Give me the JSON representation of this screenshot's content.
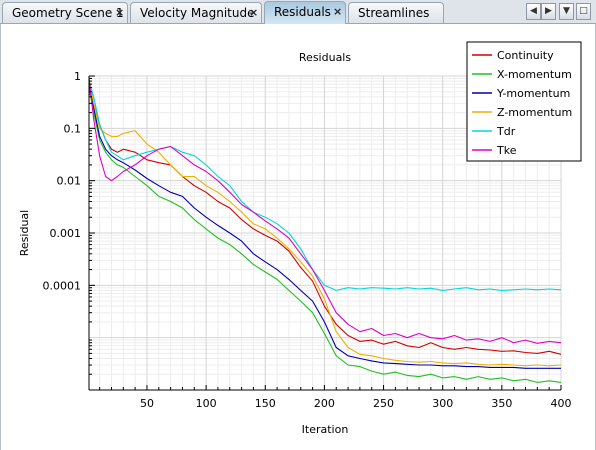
{
  "tabs": [
    {
      "label": "Geometry Scene 1",
      "active": false
    },
    {
      "label": "Velocity Magnitude",
      "active": false
    },
    {
      "label": "Residuals",
      "active": true
    },
    {
      "label": "Streamlines",
      "active": false
    }
  ],
  "tab_close_glyph": "×",
  "nav_buttons": [
    {
      "icon": "arrow-left-icon"
    },
    {
      "icon": "arrow-right-icon"
    },
    {
      "icon": "dropdown-icon"
    },
    {
      "icon": "maximize-icon"
    }
  ],
  "chart_data": {
    "type": "line",
    "title": "Residuals",
    "xlabel": "Iteration",
    "ylabel": "Residual",
    "xscale": "linear",
    "yscale": "log",
    "xlim": [
      1,
      400
    ],
    "ylim": [
      1e-06,
      1
    ],
    "xticks": [
      50,
      100,
      150,
      200,
      250,
      300,
      350,
      400
    ],
    "yticks": [
      {
        "value": 1,
        "label": "1"
      },
      {
        "value": 0.1,
        "label": "0.1"
      },
      {
        "value": 0.01,
        "label": "0.01"
      },
      {
        "value": 0.001,
        "label": "0.001"
      },
      {
        "value": 0.0001,
        "label": "0.0001"
      }
    ],
    "grid": true,
    "legend_position": "top-right",
    "series": [
      {
        "name": "Continuity",
        "color": "#d40000",
        "x": [
          1,
          5,
          10,
          15,
          20,
          25,
          30,
          40,
          50,
          60,
          70,
          80,
          90,
          100,
          110,
          120,
          130,
          140,
          150,
          160,
          170,
          180,
          190,
          200,
          210,
          220,
          230,
          240,
          250,
          260,
          270,
          280,
          290,
          300,
          310,
          320,
          330,
          340,
          350,
          360,
          370,
          380,
          390,
          400
        ],
        "y": [
          0.5,
          0.3,
          0.12,
          0.06,
          0.04,
          0.035,
          0.04,
          0.035,
          0.025,
          0.022,
          0.02,
          0.012,
          0.008,
          0.006,
          0.004,
          0.003,
          0.0018,
          0.0012,
          0.0009,
          0.0007,
          0.00045,
          0.00022,
          0.00012,
          4e-05,
          1.8e-05,
          1.1e-05,
          8.5e-06,
          9e-06,
          7.5e-06,
          8.5e-06,
          7e-06,
          6.5e-06,
          8e-06,
          6.5e-06,
          6e-06,
          6.5e-06,
          6e-06,
          5.8e-06,
          5.5e-06,
          5.6e-06,
          5.2e-06,
          5e-06,
          5.5e-06,
          4.8e-06
        ]
      },
      {
        "name": "X-momentum",
        "color": "#20c020",
        "x": [
          1,
          5,
          10,
          15,
          20,
          25,
          30,
          40,
          50,
          60,
          70,
          80,
          90,
          100,
          110,
          120,
          130,
          140,
          150,
          160,
          170,
          180,
          190,
          200,
          210,
          220,
          230,
          240,
          250,
          260,
          270,
          280,
          290,
          300,
          310,
          320,
          330,
          340,
          350,
          360,
          370,
          380,
          390,
          400
        ],
        "y": [
          0.6,
          0.2,
          0.06,
          0.035,
          0.025,
          0.02,
          0.018,
          0.012,
          0.008,
          0.005,
          0.004,
          0.003,
          0.0018,
          0.0012,
          0.0008,
          0.0006,
          0.0004,
          0.00025,
          0.00018,
          0.00013,
          8e-05,
          5e-05,
          3e-05,
          1.2e-05,
          4.5e-06,
          3e-06,
          2.8e-06,
          2.3e-06,
          2e-06,
          2.2e-06,
          1.9e-06,
          1.8e-06,
          2e-06,
          1.7e-06,
          1.8e-06,
          1.6e-06,
          1.8e-06,
          1.6e-06,
          1.7e-06,
          1.5e-06,
          1.6e-06,
          1.4e-06,
          1.5e-06,
          1.4e-06
        ]
      },
      {
        "name": "Y-momentum",
        "color": "#0000b0",
        "x": [
          1,
          5,
          10,
          15,
          20,
          25,
          30,
          40,
          50,
          60,
          70,
          80,
          90,
          100,
          110,
          120,
          130,
          140,
          150,
          160,
          170,
          180,
          190,
          200,
          210,
          220,
          230,
          240,
          250,
          260,
          270,
          280,
          290,
          300,
          310,
          320,
          330,
          340,
          350,
          360,
          370,
          380,
          390,
          400
        ],
        "y": [
          0.7,
          0.25,
          0.07,
          0.04,
          0.03,
          0.025,
          0.022,
          0.016,
          0.011,
          0.008,
          0.006,
          0.005,
          0.003,
          0.002,
          0.0014,
          0.001,
          0.0007,
          0.0004,
          0.00028,
          0.0002,
          0.00013,
          8e-05,
          5e-05,
          2e-05,
          6.5e-06,
          4.5e-06,
          4e-06,
          3.6e-06,
          3.3e-06,
          3.2e-06,
          3.1e-06,
          3e-06,
          3e-06,
          2.9e-06,
          2.9e-06,
          2.8e-06,
          2.8e-06,
          2.7e-06,
          2.7e-06,
          2.7e-06,
          2.6e-06,
          2.6e-06,
          2.6e-06,
          2.6e-06
        ]
      },
      {
        "name": "Z-momentum",
        "color": "#f0b000",
        "x": [
          1,
          5,
          10,
          15,
          20,
          25,
          30,
          40,
          50,
          60,
          70,
          80,
          90,
          100,
          110,
          120,
          130,
          140,
          150,
          160,
          170,
          180,
          190,
          200,
          210,
          220,
          230,
          240,
          250,
          260,
          270,
          280,
          290,
          300,
          310,
          320,
          330,
          340,
          350,
          360,
          370,
          380,
          390,
          400
        ],
        "y": [
          0.9,
          0.3,
          0.1,
          0.08,
          0.07,
          0.07,
          0.08,
          0.09,
          0.05,
          0.035,
          0.02,
          0.012,
          0.012,
          0.008,
          0.006,
          0.004,
          0.0025,
          0.0015,
          0.0012,
          0.0008,
          0.0005,
          0.00028,
          0.00015,
          5.5e-05,
          1.3e-05,
          6.5e-06,
          4.8e-06,
          4.5e-06,
          4e-06,
          3.7e-06,
          3.5e-06,
          3.4e-06,
          3.5e-06,
          3.3e-06,
          3.2e-06,
          3.3e-06,
          3.1e-06,
          3e-06,
          3.1e-06,
          3e-06,
          2.9e-06,
          3e-06,
          2.9e-06,
          3e-06
        ]
      },
      {
        "name": "Tdr",
        "color": "#00d8d8",
        "x": [
          1,
          5,
          10,
          15,
          20,
          25,
          30,
          40,
          50,
          60,
          70,
          80,
          90,
          100,
          110,
          120,
          130,
          140,
          150,
          160,
          170,
          180,
          190,
          200,
          210,
          220,
          230,
          240,
          250,
          260,
          270,
          280,
          290,
          300,
          310,
          320,
          330,
          340,
          350,
          360,
          370,
          380,
          390,
          400
        ],
        "y": [
          0.8,
          0.4,
          0.12,
          0.06,
          0.035,
          0.03,
          0.025,
          0.03,
          0.035,
          0.04,
          0.045,
          0.035,
          0.03,
          0.02,
          0.012,
          0.008,
          0.004,
          0.0025,
          0.002,
          0.0015,
          0.001,
          0.0005,
          0.0002,
          0.0001,
          8e-05,
          9e-05,
          8.5e-05,
          9e-05,
          8.8e-05,
          8.5e-05,
          9e-05,
          8.5e-05,
          8.8e-05,
          8e-05,
          8.5e-05,
          9e-05,
          8.2e-05,
          8.5e-05,
          8e-05,
          8.2e-05,
          8.5e-05,
          8.2e-05,
          8.5e-05,
          8.2e-05
        ]
      },
      {
        "name": "Tke",
        "color": "#e000c8",
        "x": [
          1,
          5,
          10,
          15,
          20,
          25,
          30,
          40,
          50,
          60,
          70,
          80,
          90,
          100,
          110,
          120,
          130,
          140,
          150,
          160,
          170,
          180,
          190,
          200,
          210,
          220,
          230,
          240,
          250,
          260,
          270,
          280,
          290,
          300,
          310,
          320,
          330,
          340,
          350,
          360,
          370,
          380,
          390,
          400
        ],
        "y": [
          0.9,
          0.15,
          0.03,
          0.012,
          0.01,
          0.012,
          0.015,
          0.02,
          0.03,
          0.04,
          0.045,
          0.03,
          0.02,
          0.015,
          0.01,
          0.006,
          0.0035,
          0.0025,
          0.0017,
          0.0012,
          0.0008,
          0.0004,
          0.0002,
          8e-05,
          3e-05,
          1.8e-05,
          1.3e-05,
          1.5e-05,
          1.1e-05,
          1.2e-05,
          1e-05,
          1.2e-05,
          1e-05,
          9.5e-06,
          1.1e-05,
          9e-06,
          9.5e-06,
          8.5e-06,
          1e-05,
          8e-06,
          9e-06,
          7.8e-06,
          8.5e-06,
          8e-06
        ]
      }
    ]
  }
}
